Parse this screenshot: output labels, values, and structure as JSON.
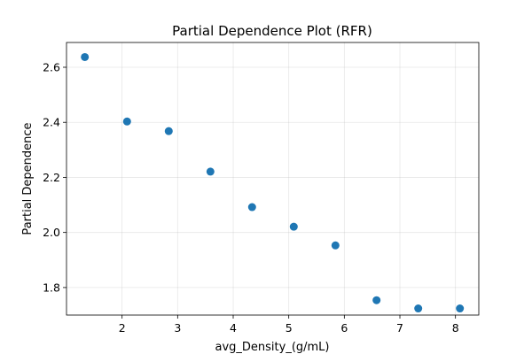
{
  "chart_data": {
    "type": "scatter",
    "title": "Partial Dependence Plot (RFR)",
    "xlabel": "avg_Density_(g/mL)",
    "ylabel": "Partial Dependence",
    "xlim": [
      1.0,
      8.42
    ],
    "ylim": [
      1.7,
      2.69
    ],
    "xticks": [
      2,
      3,
      4,
      5,
      6,
      7,
      8
    ],
    "yticks": [
      1.8,
      2.0,
      2.2,
      2.4,
      2.6
    ],
    "x_tick_labels": [
      "2",
      "3",
      "4",
      "5",
      "6",
      "7",
      "8"
    ],
    "y_tick_labels": [
      "1.8",
      "2.0",
      "2.2",
      "2.4",
      "2.6"
    ],
    "grid": true,
    "marker_color": "#1f77b4",
    "x": [
      1.33,
      2.09,
      2.84,
      3.59,
      4.34,
      5.09,
      5.84,
      6.58,
      7.33,
      8.08
    ],
    "y": [
      2.637,
      2.403,
      2.368,
      2.221,
      2.092,
      2.021,
      1.953,
      1.754,
      1.724,
      1.724
    ]
  }
}
